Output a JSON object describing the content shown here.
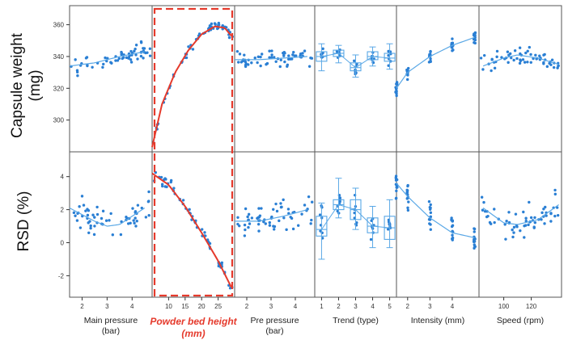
{
  "colors": {
    "points": "#2a7fd4",
    "fit": "#5aa8e6",
    "highlight": "#e53a2c",
    "panel_border": "#555555"
  },
  "rows": [
    {
      "label_line1": "Capsule weight",
      "label_line2": "(mg)",
      "yticks": [
        "300",
        "320",
        "340",
        "360"
      ]
    },
    {
      "label_line1": "RSD (%)",
      "label_line2": "",
      "yticks": [
        "-2",
        "0",
        "2",
        "4"
      ]
    }
  ],
  "chart_data": [
    {
      "type": "scatter",
      "title": "",
      "columns": [
        {
          "xlabel": "Main pressure",
          "unit": "(bar)",
          "xticks": [
            "2",
            "3",
            "4"
          ],
          "highlighted": false
        },
        {
          "xlabel": "Powder bed height",
          "unit": "(mm)",
          "xticks": [
            "10",
            "15",
            "20",
            "25"
          ],
          "highlighted": true
        },
        {
          "xlabel": "Pre pressure",
          "unit": "(bar)",
          "xticks": [
            "2",
            "3",
            "4"
          ],
          "highlighted": false
        },
        {
          "xlabel": "Trend (type)",
          "unit": "",
          "xticks": [
            "1",
            "2",
            "3",
            "4",
            "5"
          ],
          "highlighted": false
        },
        {
          "xlabel": "Intensity (mm)",
          "unit": "",
          "xticks": [
            "2",
            "3",
            "4"
          ],
          "highlighted": false
        },
        {
          "xlabel": "Speed (rpm)",
          "unit": "",
          "xticks": [
            "100",
            "120"
          ],
          "highlighted": false
        }
      ],
      "rows": [
        {
          "ylabel": "Capsule weight (mg)",
          "ylim": [
            280,
            372
          ]
        },
        {
          "ylabel": "RSD (%)",
          "ylim": [
            -3.3,
            5.5
          ]
        }
      ],
      "panels": {
        "weight": {
          "main_pressure": {
            "fit": [
              [
                1.5,
                334
              ],
              [
                2.5,
                336
              ],
              [
                3.5,
                340
              ],
              [
                4.5,
                343
              ]
            ]
          },
          "powder_bed_height": {
            "fit": [
              [
                5,
                283
              ],
              [
                8,
                310
              ],
              [
                12,
                330
              ],
              [
                16,
                344
              ],
              [
                20,
                354
              ],
              [
                24,
                359
              ],
              [
                27,
                358
              ],
              [
                29,
                353
              ]
            ]
          },
          "pre_pressure": {
            "fit": [
              [
                1.5,
                338
              ],
              [
                2.5,
                338
              ],
              [
                3.5,
                339
              ],
              [
                4.5,
                340
              ]
            ]
          },
          "trend_boxes": [
            {
              "x": 1,
              "min": 331,
              "q1": 337,
              "median": 340,
              "q3": 343,
              "max": 348
            },
            {
              "x": 2,
              "min": 336,
              "q1": 340,
              "median": 342,
              "q3": 344,
              "max": 347
            },
            {
              "x": 3,
              "min": 327,
              "q1": 331,
              "median": 333,
              "q3": 336,
              "max": 341
            },
            {
              "x": 4,
              "min": 334,
              "q1": 338,
              "median": 340,
              "q3": 343,
              "max": 346
            },
            {
              "x": 5,
              "min": 332,
              "q1": 337,
              "median": 339,
              "q3": 342,
              "max": 348
            }
          ],
          "intensity": {
            "fit": [
              [
                1.5,
                320
              ],
              [
                2,
                330
              ],
              [
                3,
                340
              ],
              [
                4,
                347
              ],
              [
                5,
                352
              ]
            ]
          },
          "speed": {
            "fit": [
              [
                85,
                334
              ],
              [
                100,
                339
              ],
              [
                110,
                341
              ],
              [
                125,
                339
              ],
              [
                140,
                335
              ]
            ]
          }
        },
        "rsd": {
          "main_pressure": {
            "fit": [
              [
                1.5,
                2.1
              ],
              [
                2.5,
                1.3
              ],
              [
                3,
                1.0
              ],
              [
                3.5,
                1.1
              ],
              [
                4.5,
                2.1
              ]
            ]
          },
          "powder_bed_height": {
            "fit": [
              [
                5,
                4.2
              ],
              [
                10,
                3.5
              ],
              [
                15,
                2.2
              ],
              [
                20,
                0.6
              ],
              [
                25,
                -1.1
              ],
              [
                29,
                -2.7
              ]
            ]
          },
          "pre_pressure": {
            "fit": [
              [
                1.5,
                1.3
              ],
              [
                2.5,
                1.3
              ],
              [
                3.5,
                1.6
              ],
              [
                4.5,
                2.0
              ]
            ]
          },
          "trend_boxes": [
            {
              "x": 1,
              "min": -1.0,
              "q1": 0.4,
              "median": 0.8,
              "q3": 1.6,
              "max": 2.4
            },
            {
              "x": 2,
              "min": 1.5,
              "q1": 2.0,
              "median": 2.3,
              "q3": 2.6,
              "max": 3.9
            },
            {
              "x": 3,
              "min": 0.8,
              "q1": 1.4,
              "median": 2.0,
              "q3": 2.6,
              "max": 3.3
            },
            {
              "x": 4,
              "min": -0.3,
              "q1": 0.6,
              "median": 1.0,
              "q3": 1.5,
              "max": 2.2
            },
            {
              "x": 5,
              "min": -0.3,
              "q1": 0.2,
              "median": 0.9,
              "q3": 1.6,
              "max": 2.6
            }
          ],
          "intensity": {
            "fit": [
              [
                1.5,
                3.6
              ],
              [
                2,
                2.8
              ],
              [
                3,
                1.5
              ],
              [
                4,
                0.6
              ],
              [
                5,
                0.3
              ]
            ]
          },
          "speed": {
            "fit": [
              [
                85,
                2.1
              ],
              [
                100,
                1.2
              ],
              [
                110,
                1.1
              ],
              [
                125,
                1.4
              ],
              [
                140,
                2.3
              ]
            ]
          }
        }
      }
    }
  ]
}
